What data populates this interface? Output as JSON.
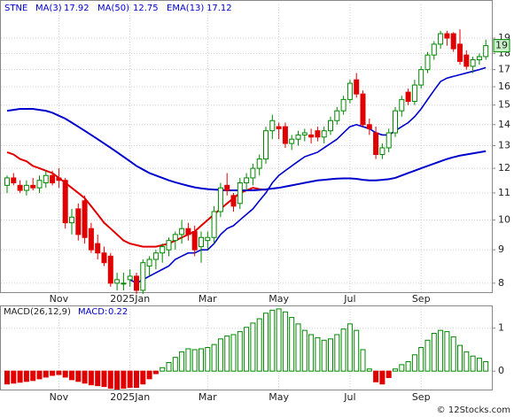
{
  "chart_data": {
    "type": "candlestick",
    "symbol": "STNE",
    "legend": [
      {
        "name": "MA(3)",
        "value": 17.92
      },
      {
        "name": "MA(50)",
        "value": 12.75
      },
      {
        "name": "EMA(13)",
        "value": 17.12
      }
    ],
    "categories": [
      null,
      null,
      null,
      null,
      null,
      null,
      null,
      null,
      "Nov",
      null,
      null,
      null,
      null,
      null,
      null,
      null,
      null,
      null,
      null,
      "2025Jan",
      null,
      null,
      null,
      null,
      null,
      null,
      null,
      null,
      null,
      null,
      null,
      "Mar",
      null,
      null,
      null,
      null,
      null,
      null,
      null,
      null,
      null,
      null,
      "May",
      null,
      null,
      null,
      null,
      null,
      null,
      null,
      null,
      null,
      null,
      "Jul",
      null,
      null,
      null,
      null,
      null,
      null,
      null,
      null,
      null,
      null,
      "Sep",
      null,
      null,
      null,
      null,
      null,
      null,
      null,
      null,
      null,
      null
    ],
    "open": [
      11.3,
      11.6,
      11.3,
      11.1,
      11.3,
      11.2,
      11.4,
      11.7,
      11.6,
      11.5,
      9.9,
      10.4,
      10.7,
      9.7,
      9.2,
      8.9,
      8.8,
      8.0,
      8.0,
      8.1,
      8.2,
      7.8,
      8.5,
      8.7,
      8.9,
      9.0,
      9.3,
      9.5,
      9.7,
      9.6,
      9.1,
      9.3,
      9.4,
      10.3,
      11.3,
      10.9,
      10.6,
      11.4,
      11.6,
      12.0,
      12.4,
      13.7,
      13.9,
      13.9,
      13.1,
      13.3,
      13.5,
      13.5,
      13.7,
      13.4,
      13.7,
      14.2,
      14.7,
      15.3,
      16.4,
      15.6,
      14.0,
      13.6,
      12.6,
      12.9,
      13.6,
      14.7,
      15.7,
      15.2,
      16.1,
      17.0,
      17.9,
      18.6,
      19.3,
      19.3,
      18.6,
      17.9,
      17.2,
      17.6,
      17.8
    ],
    "high": [
      11.7,
      11.8,
      11.5,
      11.5,
      11.6,
      11.7,
      11.9,
      11.9,
      12.0,
      11.6,
      10.4,
      10.6,
      10.9,
      9.9,
      9.5,
      9.1,
      8.9,
      8.3,
      8.3,
      8.4,
      8.3,
      8.7,
      8.8,
      9.0,
      9.2,
      9.4,
      9.6,
      10.0,
      9.9,
      9.8,
      9.6,
      9.6,
      10.5,
      11.4,
      11.8,
      11.0,
      11.6,
      11.8,
      12.2,
      12.6,
      13.9,
      14.5,
      14.1,
      14.1,
      13.5,
      13.7,
      13.8,
      13.8,
      13.9,
      13.9,
      14.4,
      14.9,
      15.5,
      16.4,
      16.8,
      15.8,
      14.3,
      13.9,
      13.1,
      13.8,
      14.9,
      15.5,
      15.9,
      16.4,
      17.2,
      18.1,
      18.8,
      19.5,
      19.5,
      19.4,
      19.6,
      18.2,
      17.8,
      18.0,
      18.9
    ],
    "low": [
      11.0,
      11.3,
      11.0,
      10.9,
      11.1,
      11.0,
      11.2,
      11.3,
      11.2,
      9.7,
      9.5,
      9.3,
      9.2,
      8.9,
      8.7,
      8.5,
      7.9,
      7.8,
      7.8,
      7.9,
      7.7,
      7.7,
      8.2,
      8.4,
      8.6,
      8.8,
      9.0,
      9.2,
      9.3,
      8.8,
      8.6,
      9.0,
      9.2,
      10.1,
      10.9,
      10.3,
      10.4,
      11.1,
      11.3,
      11.7,
      12.2,
      13.3,
      13.3,
      12.9,
      12.8,
      13.0,
      13.2,
      13.1,
      13.2,
      13.1,
      13.5,
      14.0,
      14.5,
      15.1,
      15.4,
      13.9,
      13.5,
      12.4,
      12.4,
      12.7,
      13.4,
      14.4,
      15.0,
      15.0,
      15.9,
      16.8,
      17.6,
      18.3,
      18.5,
      18.1,
      17.3,
      17.0,
      16.8,
      17.3,
      17.6
    ],
    "close": [
      11.6,
      11.4,
      11.1,
      11.3,
      11.2,
      11.5,
      11.7,
      11.4,
      11.5,
      9.9,
      10.1,
      9.5,
      9.4,
      9.0,
      8.9,
      8.6,
      8.0,
      8.1,
      8.0,
      8.2,
      7.8,
      8.6,
      8.7,
      8.9,
      9.1,
      9.3,
      9.5,
      9.7,
      9.5,
      9.0,
      9.4,
      9.4,
      10.3,
      11.2,
      11.1,
      10.5,
      11.4,
      11.6,
      12.0,
      12.4,
      13.7,
      14.2,
      13.8,
      13.1,
      13.3,
      13.5,
      13.6,
      13.4,
      13.4,
      13.7,
      14.2,
      14.7,
      15.3,
      16.2,
      15.6,
      14.0,
      13.8,
      12.6,
      12.9,
      13.6,
      14.7,
      15.3,
      15.2,
      16.1,
      17.0,
      17.9,
      18.6,
      19.3,
      19.0,
      18.3,
      17.5,
      17.2,
      17.6,
      17.8,
      18.5
    ],
    "up_color": "#008800",
    "down_color": "#e00000",
    "series": [
      {
        "color": "#e00000",
        "values": [
          12.7,
          12.6,
          12.4,
          12.3,
          12.1,
          12.0,
          11.9,
          11.8,
          11.6,
          11.4,
          11.2,
          11.0,
          10.8,
          10.5,
          10.2,
          9.9,
          9.7,
          9.5,
          9.3,
          9.2,
          9.15,
          9.1,
          9.1,
          9.1,
          9.15,
          9.2,
          9.3,
          9.4,
          9.5,
          9.6,
          9.8,
          10.0,
          10.2,
          10.4,
          10.6,
          10.8,
          11.0,
          11.1,
          11.2,
          11.15,
          11.12,
          null,
          null,
          null,
          null,
          null,
          null,
          null,
          null,
          null,
          null,
          null,
          null,
          null,
          null,
          null,
          null,
          null,
          null,
          null,
          null,
          null,
          null,
          null,
          null,
          null,
          null,
          null,
          null,
          null,
          null,
          null,
          null,
          null,
          null
        ]
      },
      {
        "color": "#0000cc",
        "values": [
          14.7,
          14.75,
          14.8,
          14.8,
          14.8,
          14.75,
          14.7,
          14.6,
          14.45,
          14.3,
          14.1,
          13.9,
          13.7,
          13.5,
          13.3,
          13.1,
          12.9,
          12.7,
          12.5,
          12.3,
          12.1,
          11.95,
          11.8,
          11.7,
          11.6,
          11.5,
          11.42,
          11.35,
          11.28,
          11.22,
          11.18,
          11.15,
          11.13,
          11.12,
          11.1,
          11.1,
          11.1,
          11.1,
          11.1,
          11.12,
          11.14,
          11.17,
          11.2,
          11.25,
          11.3,
          11.35,
          11.4,
          11.45,
          11.5,
          11.52,
          11.55,
          11.57,
          11.58,
          11.58,
          11.56,
          11.52,
          11.5,
          11.5,
          11.52,
          11.55,
          11.6,
          11.7,
          11.8,
          11.9,
          12.0,
          12.1,
          12.2,
          12.3,
          12.4,
          12.48,
          12.55,
          12.6,
          12.65,
          12.7,
          12.75
        ]
      },
      {
        "color": "#0000cc",
        "values": [
          null,
          null,
          null,
          null,
          null,
          null,
          null,
          null,
          null,
          null,
          null,
          null,
          null,
          null,
          null,
          null,
          null,
          null,
          null,
          8.1,
          8.0,
          8.1,
          8.2,
          8.3,
          8.4,
          8.5,
          8.7,
          8.8,
          8.9,
          8.9,
          9.0,
          9.0,
          9.2,
          9.5,
          9.7,
          9.8,
          10.0,
          10.2,
          10.4,
          10.7,
          11.0,
          11.4,
          11.7,
          11.9,
          12.1,
          12.3,
          12.5,
          12.6,
          12.7,
          12.9,
          13.1,
          13.3,
          13.6,
          13.9,
          14.0,
          13.9,
          13.8,
          13.6,
          13.5,
          13.5,
          13.7,
          13.9,
          14.1,
          14.4,
          14.8,
          15.3,
          15.8,
          16.3,
          16.5,
          16.6,
          16.7,
          16.8,
          16.9,
          17.0,
          17.12
        ]
      }
    ],
    "log_scale": true,
    "ylim": [
      7.75,
      21.4
    ],
    "yticks": [
      8,
      9,
      10,
      11,
      12,
      13,
      14,
      15,
      16,
      17,
      18,
      19
    ],
    "last_price": 18.5,
    "last_price_label": "19",
    "grid": true,
    "macd": {
      "title": "MACD(26,12,9)",
      "label": "MACD:",
      "value": 0.22,
      "values": [
        -0.3,
        -0.28,
        -0.26,
        -0.24,
        -0.22,
        -0.18,
        -0.14,
        -0.1,
        -0.08,
        -0.14,
        -0.2,
        -0.24,
        -0.28,
        -0.32,
        -0.34,
        -0.36,
        -0.4,
        -0.42,
        -0.4,
        -0.38,
        -0.38,
        -0.3,
        -0.18,
        -0.06,
        0.08,
        0.2,
        0.32,
        0.45,
        0.52,
        0.5,
        0.52,
        0.55,
        0.62,
        0.75,
        0.82,
        0.85,
        0.92,
        1.02,
        1.12,
        1.22,
        1.35,
        1.42,
        1.45,
        1.38,
        1.25,
        1.1,
        0.95,
        0.85,
        0.78,
        0.72,
        0.75,
        0.85,
        0.98,
        1.1,
        0.95,
        0.5,
        0.05,
        -0.25,
        -0.3,
        -0.15,
        0.05,
        0.15,
        0.22,
        0.38,
        0.55,
        0.72,
        0.88,
        0.95,
        0.92,
        0.8,
        0.6,
        0.45,
        0.35,
        0.3,
        0.22
      ],
      "ylim": [
        -0.43,
        1.51
      ],
      "yticks": [
        0,
        1
      ]
    },
    "watermark": "© 12Stocks.com"
  }
}
